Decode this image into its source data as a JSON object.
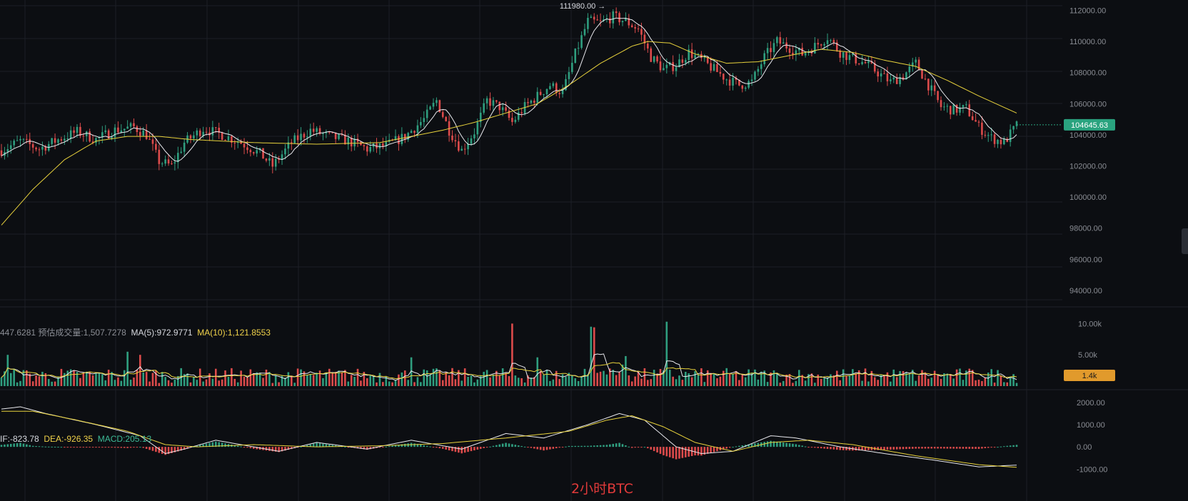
{
  "chart_data": [
    {
      "type": "candlestick",
      "pane": "price",
      "title": "",
      "y_ticks": [
        "112000.00",
        "110000.00",
        "108000.00",
        "106000.00",
        "104000.00",
        "102000.00",
        "100000.00",
        "98000.00",
        "96000.00",
        "94000.00"
      ],
      "ylim": [
        93400,
        112300
      ],
      "last_price": "104645.63",
      "high_marker": "111980.00 →",
      "anchors": [
        {
          "i": 0,
          "v": 103000
        },
        {
          "i": 6,
          "v": 103600
        },
        {
          "i": 12,
          "v": 103100
        },
        {
          "i": 18,
          "v": 103700
        },
        {
          "i": 24,
          "v": 104200
        },
        {
          "i": 30,
          "v": 103700
        },
        {
          "i": 36,
          "v": 104300
        },
        {
          "i": 42,
          "v": 104500
        },
        {
          "i": 46,
          "v": 104000
        },
        {
          "i": 50,
          "v": 102300
        },
        {
          "i": 54,
          "v": 102000
        },
        {
          "i": 58,
          "v": 103500
        },
        {
          "i": 64,
          "v": 104400
        },
        {
          "i": 70,
          "v": 104000
        },
        {
          "i": 76,
          "v": 103500
        },
        {
          "i": 82,
          "v": 102800
        },
        {
          "i": 86,
          "v": 102000
        },
        {
          "i": 92,
          "v": 103500
        },
        {
          "i": 98,
          "v": 104300
        },
        {
          "i": 104,
          "v": 103900
        },
        {
          "i": 110,
          "v": 103600
        },
        {
          "i": 116,
          "v": 103100
        },
        {
          "i": 122,
          "v": 103300
        },
        {
          "i": 128,
          "v": 103900
        },
        {
          "i": 134,
          "v": 105000
        },
        {
          "i": 138,
          "v": 106200
        },
        {
          "i": 142,
          "v": 104300
        },
        {
          "i": 146,
          "v": 103000
        },
        {
          "i": 150,
          "v": 104200
        },
        {
          "i": 154,
          "v": 106200
        },
        {
          "i": 158,
          "v": 105800
        },
        {
          "i": 162,
          "v": 104800
        },
        {
          "i": 166,
          "v": 105800
        },
        {
          "i": 170,
          "v": 106500
        },
        {
          "i": 174,
          "v": 107200
        },
        {
          "i": 178,
          "v": 106700
        },
        {
          "i": 182,
          "v": 109200
        },
        {
          "i": 186,
          "v": 111300
        },
        {
          "i": 190,
          "v": 111200
        },
        {
          "i": 194,
          "v": 111600
        },
        {
          "i": 198,
          "v": 111300
        },
        {
          "i": 202,
          "v": 110800
        },
        {
          "i": 206,
          "v": 109000
        },
        {
          "i": 210,
          "v": 108200
        },
        {
          "i": 214,
          "v": 108500
        },
        {
          "i": 218,
          "v": 109300
        },
        {
          "i": 222,
          "v": 108800
        },
        {
          "i": 226,
          "v": 108200
        },
        {
          "i": 230,
          "v": 107600
        },
        {
          "i": 234,
          "v": 107200
        },
        {
          "i": 238,
          "v": 107400
        },
        {
          "i": 242,
          "v": 109000
        },
        {
          "i": 246,
          "v": 110000
        },
        {
          "i": 250,
          "v": 109600
        },
        {
          "i": 254,
          "v": 109200
        },
        {
          "i": 258,
          "v": 109700
        },
        {
          "i": 262,
          "v": 110300
        },
        {
          "i": 266,
          "v": 109300
        },
        {
          "i": 270,
          "v": 108900
        },
        {
          "i": 274,
          "v": 108600
        },
        {
          "i": 278,
          "v": 108000
        },
        {
          "i": 282,
          "v": 107400
        },
        {
          "i": 286,
          "v": 107800
        },
        {
          "i": 290,
          "v": 108600
        },
        {
          "i": 294,
          "v": 107200
        },
        {
          "i": 298,
          "v": 105800
        },
        {
          "i": 302,
          "v": 105600
        },
        {
          "i": 306,
          "v": 105700
        },
        {
          "i": 310,
          "v": 104500
        },
        {
          "i": 314,
          "v": 103800
        },
        {
          "i": 318,
          "v": 103500
        },
        {
          "i": 322,
          "v": 104600
        }
      ],
      "ma_long_anchors": [
        {
          "i": 0,
          "v": 98200
        },
        {
          "i": 10,
          "v": 100500
        },
        {
          "i": 20,
          "v": 102400
        },
        {
          "i": 30,
          "v": 103600
        },
        {
          "i": 40,
          "v": 103900
        },
        {
          "i": 50,
          "v": 103900
        },
        {
          "i": 60,
          "v": 103700
        },
        {
          "i": 70,
          "v": 103600
        },
        {
          "i": 80,
          "v": 103500
        },
        {
          "i": 100,
          "v": 103400
        },
        {
          "i": 120,
          "v": 103500
        },
        {
          "i": 140,
          "v": 104300
        },
        {
          "i": 150,
          "v": 104800
        },
        {
          "i": 160,
          "v": 105400
        },
        {
          "i": 170,
          "v": 106000
        },
        {
          "i": 180,
          "v": 107200
        },
        {
          "i": 190,
          "v": 108600
        },
        {
          "i": 200,
          "v": 109700
        },
        {
          "i": 205,
          "v": 110000
        },
        {
          "i": 212,
          "v": 109900
        },
        {
          "i": 220,
          "v": 109200
        },
        {
          "i": 230,
          "v": 108600
        },
        {
          "i": 240,
          "v": 108700
        },
        {
          "i": 250,
          "v": 109100
        },
        {
          "i": 260,
          "v": 109500
        },
        {
          "i": 270,
          "v": 109300
        },
        {
          "i": 280,
          "v": 108800
        },
        {
          "i": 290,
          "v": 108400
        },
        {
          "i": 300,
          "v": 107500
        },
        {
          "i": 310,
          "v": 106500
        },
        {
          "i": 322,
          "v": 105400
        }
      ]
    },
    {
      "type": "bar",
      "pane": "volume",
      "y_ticks": [
        "10.00k",
        "5.00k"
      ],
      "ylim": [
        0,
        10500
      ],
      "last_volume": "1.4k",
      "legend": {
        "vol_prefix": "447.6281",
        "est_label": "预估成交量:",
        "est_value": "1,507.7278",
        "ma5": "MA(5):972.9771",
        "ma10": "MA(10):1,121.8553"
      },
      "spikes": [
        {
          "i": 162,
          "v": 10000
        },
        {
          "i": 187,
          "v": 9500
        },
        {
          "i": 188,
          "v": 9400
        },
        {
          "i": 211,
          "v": 10300
        },
        {
          "i": 40,
          "v": 5500
        },
        {
          "i": 44,
          "v": 5000
        },
        {
          "i": 130,
          "v": 4600
        },
        {
          "i": 198,
          "v": 4800
        },
        {
          "i": 170,
          "v": 4600
        },
        {
          "i": 2,
          "v": 5000
        }
      ]
    },
    {
      "type": "bar",
      "pane": "macd",
      "y_ticks": [
        "2000.00",
        "1000.00",
        "0.00",
        "-1000.00"
      ],
      "ylim": [
        -1150,
        2250
      ],
      "legend": {
        "dif": "IF:-823.78",
        "dea": "DEA:-926.35",
        "macd": "MACD:205.13"
      },
      "dif_anchors": [
        {
          "i": 0,
          "v": 1700
        },
        {
          "i": 6,
          "v": 1800
        },
        {
          "i": 14,
          "v": 1500
        },
        {
          "i": 30,
          "v": 1000
        },
        {
          "i": 44,
          "v": 500
        },
        {
          "i": 52,
          "v": -300
        },
        {
          "i": 58,
          "v": -100
        },
        {
          "i": 68,
          "v": 300
        },
        {
          "i": 76,
          "v": 100
        },
        {
          "i": 88,
          "v": -200
        },
        {
          "i": 100,
          "v": 200
        },
        {
          "i": 116,
          "v": -100
        },
        {
          "i": 130,
          "v": 300
        },
        {
          "i": 146,
          "v": -100
        },
        {
          "i": 160,
          "v": 600
        },
        {
          "i": 172,
          "v": 400
        },
        {
          "i": 186,
          "v": 1000
        },
        {
          "i": 196,
          "v": 1500
        },
        {
          "i": 204,
          "v": 1200
        },
        {
          "i": 214,
          "v": 0
        },
        {
          "i": 222,
          "v": -300
        },
        {
          "i": 232,
          "v": -200
        },
        {
          "i": 244,
          "v": 500
        },
        {
          "i": 252,
          "v": 400
        },
        {
          "i": 266,
          "v": 0
        },
        {
          "i": 280,
          "v": -300
        },
        {
          "i": 296,
          "v": -600
        },
        {
          "i": 310,
          "v": -900
        },
        {
          "i": 322,
          "v": -820
        }
      ],
      "dea_anchors": [
        {
          "i": 0,
          "v": 1600
        },
        {
          "i": 10,
          "v": 1600
        },
        {
          "i": 24,
          "v": 1200
        },
        {
          "i": 40,
          "v": 700
        },
        {
          "i": 52,
          "v": 100
        },
        {
          "i": 62,
          "v": 0
        },
        {
          "i": 80,
          "v": 100
        },
        {
          "i": 100,
          "v": 0
        },
        {
          "i": 120,
          "v": 50
        },
        {
          "i": 140,
          "v": 150
        },
        {
          "i": 160,
          "v": 400
        },
        {
          "i": 180,
          "v": 700
        },
        {
          "i": 192,
          "v": 1200
        },
        {
          "i": 200,
          "v": 1400
        },
        {
          "i": 210,
          "v": 900
        },
        {
          "i": 220,
          "v": 200
        },
        {
          "i": 232,
          "v": -200
        },
        {
          "i": 244,
          "v": 200
        },
        {
          "i": 256,
          "v": 300
        },
        {
          "i": 270,
          "v": 100
        },
        {
          "i": 290,
          "v": -400
        },
        {
          "i": 310,
          "v": -800
        },
        {
          "i": 322,
          "v": -920
        }
      ]
    }
  ],
  "watermark": "2小时BTC",
  "colors": {
    "background": "#0c0e12",
    "grid": "#1c1f26",
    "up": "#2f9e7f",
    "down": "#dc4b4b",
    "ma_short": "#e9e9ee",
    "ma_long": "#e8d23c",
    "axis_text": "#8a8d94",
    "last_price_tag": "#2aa37f",
    "last_volume_tag": "#e19a2c"
  }
}
